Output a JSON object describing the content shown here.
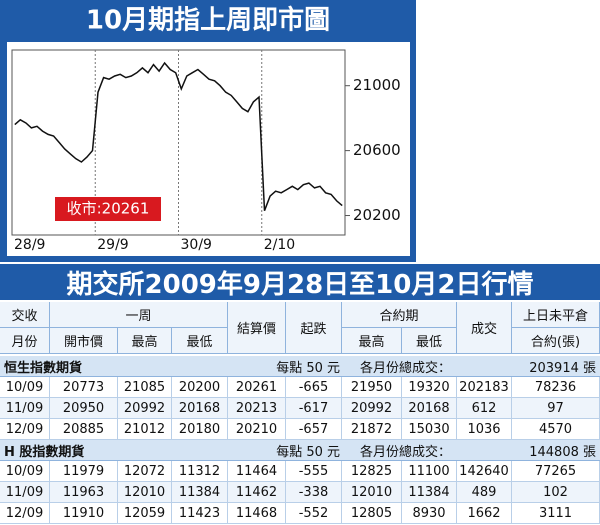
{
  "chart_data": {
    "type": "line",
    "title": "10月期指上周即市圖",
    "categories": [
      "28/9",
      null,
      null,
      null,
      null,
      null,
      null,
      null,
      null,
      null,
      null,
      null,
      null,
      null,
      null,
      "29/9",
      null,
      null,
      null,
      null,
      null,
      null,
      null,
      null,
      null,
      null,
      null,
      null,
      null,
      null,
      "30/9",
      null,
      null,
      null,
      null,
      null,
      null,
      null,
      null,
      null,
      null,
      null,
      null,
      null,
      null,
      "2/10",
      null,
      null,
      null,
      null,
      null,
      null,
      null,
      null,
      null,
      null,
      null,
      null,
      null,
      null
    ],
    "values": [
      20760,
      20790,
      20770,
      20740,
      20750,
      20720,
      20700,
      20690,
      20650,
      20610,
      20580,
      20550,
      20530,
      20560,
      20600,
      20960,
      21050,
      21040,
      21060,
      21070,
      21050,
      21060,
      21080,
      21110,
      21080,
      21130,
      21090,
      21140,
      21100,
      21080,
      20980,
      21060,
      21080,
      21100,
      21070,
      21040,
      21030,
      21000,
      20960,
      20940,
      20900,
      20860,
      20840,
      20900,
      20930,
      20230,
      20320,
      20350,
      20340,
      20360,
      20380,
      20360,
      20390,
      20400,
      20370,
      20380,
      20340,
      20330,
      20290,
      20261
    ],
    "color": "#111111",
    "ylim": [
      20080,
      21220
    ],
    "yticks": [
      20200,
      20600,
      21000
    ],
    "annotation": "收市:20261"
  },
  "table": {
    "title": "期交所2009年9月28日至10月2日行情",
    "header_top": [
      "交收",
      "一周",
      "結算價",
      "起跌",
      "合約期",
      "成交",
      "上日未平倉"
    ],
    "header_bottom": [
      "月份",
      "開市價",
      "最高",
      "最低",
      "最高",
      "最低",
      "合約(張)"
    ],
    "sections": [
      {
        "name": "恒生指數期貨",
        "unit": "每點 50 元",
        "total_label": "各月份總成交：",
        "total": "203914 張",
        "rows": [
          [
            "10/09",
            20773,
            21085,
            20200,
            20261,
            -665,
            21950,
            19320,
            202183,
            78236
          ],
          [
            "11/09",
            20950,
            20992,
            20168,
            20213,
            -617,
            20992,
            20168,
            612,
            97
          ],
          [
            "12/09",
            20885,
            21012,
            20180,
            20210,
            -657,
            21872,
            15030,
            1036,
            4570
          ]
        ]
      },
      {
        "name": "H 股指數期貨",
        "unit": "每點 50 元",
        "total_label": "各月份總成交：",
        "total": "144808 張",
        "rows": [
          [
            "10/09",
            11979,
            12072,
            11312,
            11464,
            -555,
            12825,
            11100,
            142640,
            77265
          ],
          [
            "11/09",
            11963,
            12010,
            11384,
            11462,
            -338,
            12010,
            11384,
            489,
            102
          ],
          [
            "12/09",
            11910,
            12059,
            11423,
            11468,
            -552,
            12805,
            8930,
            1662,
            3111
          ]
        ]
      }
    ]
  }
}
